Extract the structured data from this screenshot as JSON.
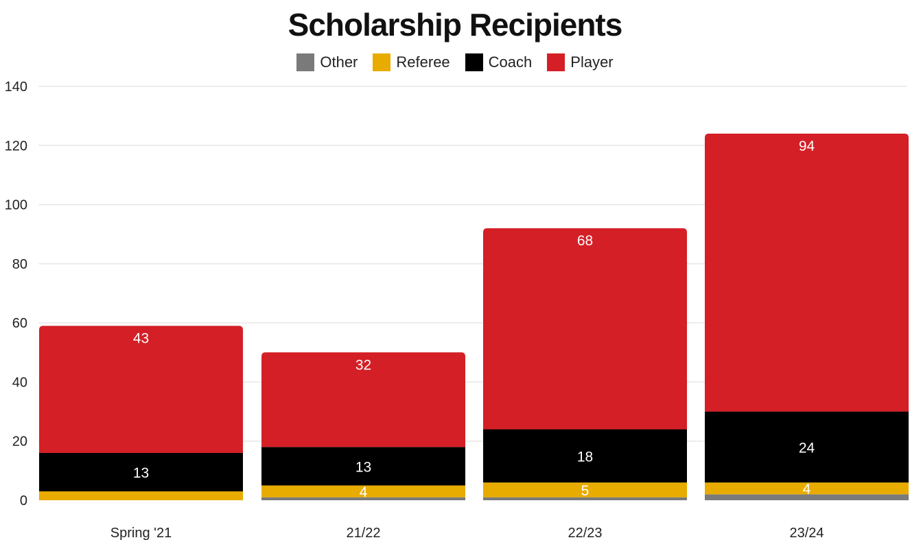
{
  "chart_data": {
    "type": "bar",
    "stacked": true,
    "title": "Scholarship Recipients",
    "legend_placement": "top-center",
    "grid": true,
    "categories": [
      "Spring '21",
      "21/22",
      "22/23",
      "23/24"
    ],
    "ylim": [
      0,
      140
    ],
    "yticks": [
      0,
      20,
      40,
      60,
      80,
      100,
      120,
      140
    ],
    "series": [
      {
        "name": "Other",
        "color": "#7a7a7a",
        "values": [
          0,
          1,
          1,
          2
        ],
        "labels": [
          "",
          "",
          "",
          ""
        ]
      },
      {
        "name": "Referee",
        "color": "#e8ac00",
        "values": [
          3,
          4,
          5,
          4
        ],
        "labels": [
          "",
          "4",
          "5",
          "4"
        ]
      },
      {
        "name": "Coach",
        "color": "#000000",
        "values": [
          13,
          13,
          18,
          24
        ],
        "labels": [
          "13",
          "13",
          "18",
          "24"
        ]
      },
      {
        "name": "Player",
        "color": "#d41f26",
        "values": [
          43,
          32,
          68,
          94
        ],
        "labels": [
          "43",
          "32",
          "68",
          "94"
        ]
      }
    ]
  }
}
